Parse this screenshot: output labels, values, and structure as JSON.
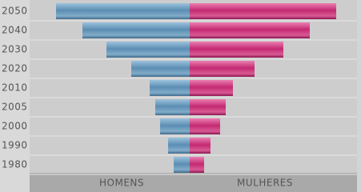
{
  "chart_data": {
    "type": "pyramid",
    "categories": [
      "2050",
      "2040",
      "2030",
      "2020",
      "2010",
      "2005",
      "2000",
      "1990",
      "1980"
    ],
    "series": [
      {
        "name": "HOMENS",
        "color": "#5b8db3",
        "values": [
          167,
          134,
          104,
          73,
          50,
          43,
          37,
          27,
          20
        ]
      },
      {
        "name": "MULHERES",
        "color": "#c42a72",
        "values": [
          183,
          150,
          117,
          81,
          54,
          45,
          38,
          26,
          18
        ]
      }
    ],
    "xlim": [
      0,
      200
    ]
  }
}
